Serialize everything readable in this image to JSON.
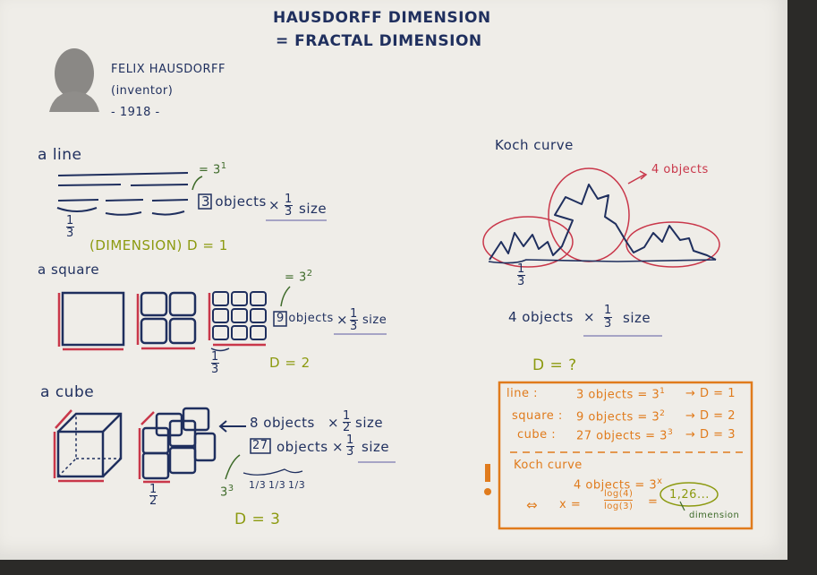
{
  "header": {
    "title_line1": "HAUSDORFF DIMENSION",
    "title_line2": "= FRACTAL DIMENSION"
  },
  "person": {
    "name": "FELIX HAUSDORFF",
    "role": "(inventor)",
    "year": "- 1918 -"
  },
  "line_section": {
    "heading": "a line",
    "fraction_num": "1",
    "fraction_den": "3",
    "power": "= 3",
    "power_exp": "1",
    "objects_count": "3",
    "objects_text": "objects",
    "times": "×",
    "size_num": "1",
    "size_den": "3",
    "size_text": "size",
    "dimension": "(DIMENSION) D = 1"
  },
  "square_section": {
    "heading": "a square",
    "fraction_num": "1",
    "fraction_den": "3",
    "power": "= 3",
    "power_exp": "2",
    "objects_count": "9",
    "objects_text": "objects",
    "times": "×",
    "size_num": "1",
    "size_den": "3",
    "size_text": "size",
    "dimension": "D = 2"
  },
  "cube_section": {
    "heading": "a cube",
    "fraction_num": "1",
    "fraction_den": "2",
    "objects8": "8 objects",
    "times": "×",
    "size8_num": "1",
    "size8_den": "2",
    "size_text": "size",
    "objects27_count": "27",
    "objects27_text": "objects",
    "size27_num": "1",
    "size27_den": "3",
    "power": "3",
    "power_exp": "3",
    "thirds": [
      "1/3",
      "1/3",
      "1/3"
    ],
    "dimension": "D = 3"
  },
  "koch_section": {
    "heading": "Koch curve",
    "annotation": "4 objects",
    "fraction_num": "1",
    "fraction_den": "3",
    "objects_text": "4 objects",
    "times": "×",
    "size_num": "1",
    "size_den": "3",
    "size_text": "size",
    "question": "D = ?"
  },
  "summary_box": {
    "rows": [
      {
        "label": "line :",
        "expr": "3 objects = 3",
        "exp": "1",
        "result": "→ D = 1"
      },
      {
        "label": "square :",
        "expr": "9 objects = 3",
        "exp": "2",
        "result": "→ D = 2"
      },
      {
        "label": "cube :",
        "expr": "27 objects = 3",
        "exp": "3",
        "result": "→ D = 3"
      }
    ],
    "koch_label": "Koch curve",
    "koch_eq": "4 objects = 3",
    "koch_exp": "x",
    "implies": "⇔",
    "x_eq": "x =",
    "log_num": "log(4)",
    "log_den": "log(3)",
    "equals": "=",
    "value": "1,26...",
    "caption": "dimension",
    "exclaim": "!"
  },
  "colors": {
    "navy": "#1f2f5e",
    "red": "#c9374a",
    "olive": "#8c9a10",
    "green": "#3e6b2a",
    "orange": "#e07b1c"
  }
}
